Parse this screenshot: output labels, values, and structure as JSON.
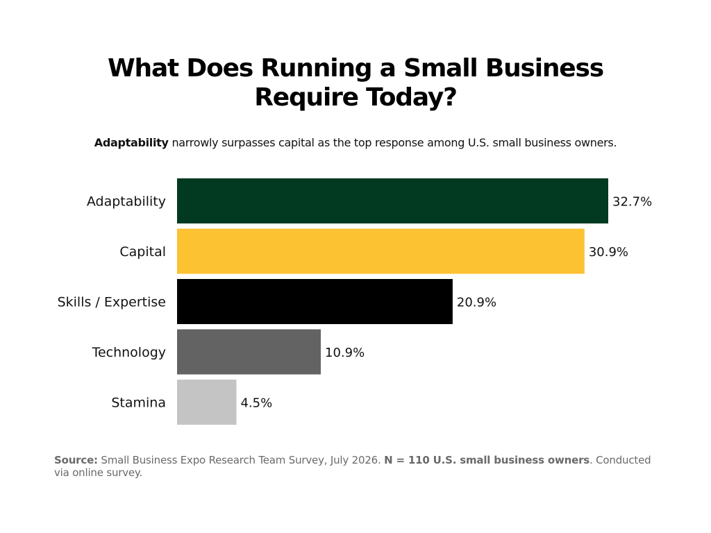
{
  "chart_data": {
    "type": "bar",
    "orientation": "horizontal",
    "title_line1": "What Does Running a Small Business",
    "title_line2": "Require Today?",
    "subtitle_bold": "Adaptability",
    "subtitle_rest": " narrowly surpasses capital as the top response among U.S. small business owners.",
    "categories": [
      "Adaptability",
      "Capital",
      "Skills / Expertise",
      "Technology",
      "Stamina"
    ],
    "values": [
      32.7,
      30.9,
      20.9,
      10.9,
      4.5
    ],
    "value_labels": [
      "32.7%",
      "30.9%",
      "20.9%",
      "10.9%",
      "4.5%"
    ],
    "colors": [
      "#013a20",
      "#fcc232",
      "#000000",
      "#636363",
      "#c4c4c4"
    ],
    "xlim": [
      0,
      32.7
    ],
    "grid": false,
    "legend": "none",
    "xlabel": "",
    "ylabel": ""
  },
  "source": {
    "label": "Source:",
    "text1": " Small Business Expo Research Team Survey, July 2026. ",
    "sample": "N = 110 U.S. small business owners",
    "text2": ". Conducted via online survey."
  }
}
